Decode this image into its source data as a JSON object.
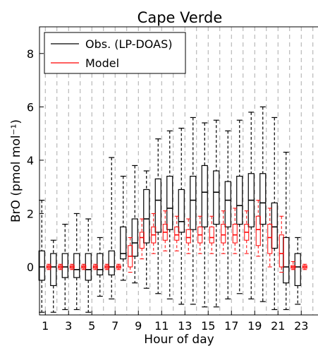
{
  "chart_data": {
    "type": "box",
    "title": "Cape Verde",
    "xlabel": "Hour of day",
    "ylabel": "BrO (pmol mol⁻¹)",
    "xlim": [
      0.5,
      24.5
    ],
    "ylim": [
      -1.8,
      9.0
    ],
    "x_ticks": [
      1,
      3,
      5,
      7,
      9,
      11,
      13,
      15,
      17,
      19,
      21,
      23
    ],
    "x_tick_labels": [
      "1",
      "3",
      "5",
      "7",
      "9",
      "11",
      "13",
      "15",
      "17",
      "19",
      "21",
      "23"
    ],
    "y_ticks": [
      0,
      2,
      4,
      6,
      8
    ],
    "y_tick_labels": [
      "0",
      "2",
      "4",
      "6",
      "8"
    ],
    "grid": "vertical dashed lines at each hour",
    "legend": {
      "placement": "top-left",
      "entries": [
        {
          "label": "Obs. (LP-DOAS)",
          "color": "#000000"
        },
        {
          "label": "Model",
          "color": "#ff0000"
        }
      ]
    },
    "series": [
      {
        "name": "Obs. (LP-DOAS)",
        "color": "#000000",
        "x": [
          1,
          2,
          3,
          4,
          5,
          6,
          7,
          8,
          9,
          10,
          11,
          12,
          13,
          14,
          15,
          16,
          17,
          18,
          19,
          20,
          21,
          22,
          23
        ],
        "q1": [
          -0.5,
          -0.7,
          -0.4,
          -0.4,
          -0.5,
          -0.3,
          -0.3,
          0.3,
          0.4,
          0.9,
          1.3,
          1.4,
          1.3,
          1.4,
          1.5,
          1.6,
          1.5,
          1.6,
          1.5,
          1.6,
          0.7,
          -0.6,
          -0.7
        ],
        "median": [
          0.0,
          0.0,
          0.0,
          -0.1,
          -0.1,
          -0.1,
          0.0,
          0.5,
          0.9,
          1.8,
          2.5,
          2.2,
          1.7,
          2.5,
          2.8,
          2.8,
          2.5,
          2.3,
          2.5,
          2.4,
          1.5,
          0.0,
          0.0
        ],
        "q3": [
          0.6,
          0.5,
          0.5,
          0.5,
          0.5,
          0.5,
          0.6,
          1.5,
          1.8,
          2.9,
          3.3,
          3.4,
          2.9,
          3.4,
          3.8,
          3.6,
          3.2,
          3.4,
          3.5,
          3.5,
          2.4,
          1.1,
          0.5
        ],
        "whisker_low": [
          -1.7,
          -1.7,
          -1.6,
          -1.6,
          -1.7,
          -1.1,
          -1.2,
          -0.5,
          -0.6,
          -0.8,
          -1.0,
          -1.2,
          -1.4,
          -1.4,
          -1.5,
          -1.5,
          -1.2,
          -1.0,
          -1.2,
          -1.3,
          -1.6,
          -1.6,
          -1.4
        ],
        "whisker_high": [
          2.5,
          1.0,
          1.6,
          2.0,
          1.8,
          1.1,
          4.1,
          3.4,
          3.8,
          3.6,
          4.8,
          5.1,
          5.2,
          5.6,
          5.4,
          5.5,
          5.1,
          5.5,
          5.8,
          6.0,
          5.6,
          4.3,
          1.1
        ]
      },
      {
        "name": "Model",
        "color": "#ff0000",
        "x": [
          1,
          2,
          3,
          4,
          5,
          6,
          7,
          8,
          9,
          10,
          11,
          12,
          13,
          14,
          15,
          16,
          17,
          18,
          19,
          20,
          21,
          22,
          23
        ],
        "q1": [
          -0.05,
          -0.05,
          -0.05,
          -0.05,
          -0.05,
          -0.05,
          -0.05,
          0.0,
          0.7,
          0.9,
          1.0,
          1.0,
          0.9,
          0.9,
          0.9,
          0.9,
          0.9,
          1.0,
          0.8,
          0.5,
          0.0,
          -0.05,
          -0.05
        ],
        "median": [
          0.0,
          0.0,
          0.0,
          0.0,
          0.0,
          0.0,
          0.0,
          0.4,
          1.1,
          1.2,
          1.3,
          1.2,
          1.1,
          1.2,
          1.1,
          1.2,
          1.2,
          1.3,
          1.4,
          1.1,
          0.5,
          0.0,
          0.0
        ],
        "q3": [
          0.05,
          0.05,
          0.05,
          0.05,
          0.05,
          0.05,
          0.05,
          0.8,
          1.3,
          1.5,
          1.6,
          1.5,
          1.4,
          1.5,
          1.5,
          1.6,
          1.6,
          1.6,
          1.9,
          1.6,
          1.2,
          0.05,
          0.05
        ],
        "whisker_low": [
          -0.1,
          -0.1,
          -0.1,
          -0.1,
          -0.1,
          -0.1,
          -0.1,
          -0.2,
          0.3,
          0.5,
          0.6,
          0.6,
          0.5,
          0.5,
          0.5,
          0.5,
          0.5,
          0.5,
          0.4,
          0.0,
          -0.2,
          -0.1,
          -0.1
        ],
        "whisker_high": [
          0.1,
          0.1,
          0.1,
          0.1,
          0.1,
          0.1,
          0.1,
          1.1,
          1.8,
          2.0,
          2.1,
          1.9,
          1.8,
          1.9,
          1.9,
          2.1,
          2.2,
          2.1,
          2.5,
          2.2,
          1.9,
          0.2,
          0.1
        ]
      }
    ]
  }
}
